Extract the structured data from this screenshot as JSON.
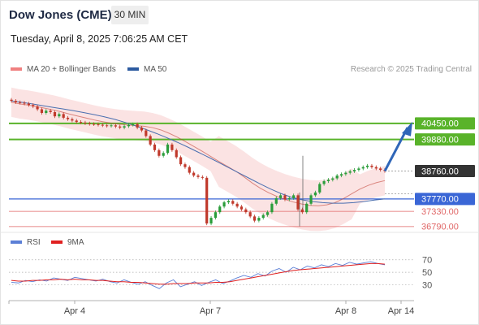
{
  "header": {
    "title": "Dow Jones (CME)",
    "interval": "30 MIN",
    "timestamp": "Tuesday, April 8, 2025 7:06:25 AM CET"
  },
  "legend": {
    "ma20_bb": {
      "label": "MA 20 + Bollinger Bands",
      "color": "#f08080"
    },
    "ma50": {
      "label": "MA 50",
      "color": "#2c5aa0"
    },
    "rsi": {
      "label": "RSI",
      "color": "#5b7fd6"
    },
    "rsi_ma": {
      "label": "9MA",
      "color": "#e02020"
    }
  },
  "credit": "Research © 2025 Trading Central",
  "colors": {
    "up": "#2a9d3a",
    "down": "#c0392b",
    "resistance": "#59b32a",
    "support": "#3a66d6",
    "secondary": "#e06666",
    "current": "#333333",
    "arrow": "#2f66b8",
    "band": "#f7cccc"
  },
  "chart_data": [
    {
      "type": "line",
      "x_tick_labels": [
        "Apr 4",
        "Apr 7",
        "Apr 8",
        "Apr 14"
      ],
      "ylim": [
        36700,
        41800
      ],
      "price_levels": [
        {
          "value": 40450,
          "label": "40450.00",
          "role": "resistance"
        },
        {
          "value": 39880,
          "label": "39880.00",
          "role": "resistance"
        },
        {
          "value": 38760,
          "label": "38760.00",
          "role": "current"
        },
        {
          "value": 37770,
          "label": "37770.00",
          "role": "support"
        },
        {
          "value": 37330,
          "label": "37330.00",
          "role": "secondary"
        },
        {
          "value": 36790,
          "label": "36790.00",
          "role": "secondary"
        }
      ],
      "series": [
        {
          "name": "price",
          "values": [
            41250,
            41200,
            41180,
            41150,
            41100,
            41050,
            40950,
            40820,
            40900,
            40850,
            40700,
            40780,
            40650,
            40600,
            40550,
            40500,
            40480,
            40450,
            40430,
            40420,
            40400,
            40380,
            40360,
            40380,
            40340,
            40300,
            40350,
            40400,
            40420,
            40300,
            40200,
            40000,
            39700,
            39500,
            39300,
            39400,
            39700,
            39500,
            39250,
            39000,
            38900,
            38700,
            38600,
            38550,
            38520,
            36900,
            37100,
            37300,
            37500,
            37650,
            37700,
            37600,
            37500,
            37400,
            37300,
            37150,
            37000,
            37100,
            37200,
            37300,
            37600,
            37800,
            37900,
            37750,
            37800,
            37900,
            37400,
            37300,
            37600,
            37900,
            38000,
            38300,
            38400,
            38450,
            38500,
            38600,
            38650,
            38700,
            38750,
            38800,
            38850,
            38900,
            38950,
            38900,
            38850,
            38800,
            38760
          ]
        },
        {
          "name": "MA 20",
          "values": [
            41200,
            41140,
            41100,
            41050,
            40990,
            40930,
            40860,
            40780,
            40710,
            40640,
            40570,
            40510,
            40460,
            40420,
            40390,
            40370,
            40350,
            40300,
            40220,
            40100,
            39960,
            39800,
            39630,
            39460,
            39280,
            39100,
            38930,
            38760,
            38560,
            38340,
            38150,
            37990,
            37860,
            37750,
            37660,
            37590,
            37540,
            37530,
            37560,
            37640,
            37780,
            37950,
            38120,
            38250,
            38350,
            38420
          ]
        },
        {
          "name": "MA 50",
          "values": [
            41250,
            41200,
            41140,
            41080,
            41020,
            40960,
            40900,
            40830,
            40760,
            40680,
            40590,
            40480,
            40360,
            40230,
            40090,
            39940,
            39780,
            39610,
            39430,
            39250,
            39060,
            38870,
            38680,
            38490,
            38300,
            38120,
            37960,
            37830,
            37740,
            37680,
            37640,
            37620,
            37620,
            37640,
            37680,
            37730,
            37770
          ]
        }
      ]
    },
    {
      "type": "line",
      "x_tick_labels": [
        "Apr 4",
        "Apr 7",
        "Apr 8",
        "Apr 14"
      ],
      "ylim": [
        10,
        80
      ],
      "reference_lines": [
        70,
        50,
        30
      ],
      "series": [
        {
          "name": "RSI",
          "values": [
            34,
            33,
            37,
            35,
            38,
            36,
            41,
            39,
            37,
            42,
            40,
            38,
            36,
            39,
            35,
            33,
            38,
            34,
            31,
            35,
            29,
            24,
            33,
            38,
            27,
            31,
            35,
            29,
            34,
            38,
            32,
            36,
            41,
            45,
            42,
            48,
            44,
            52,
            56,
            50,
            58,
            54,
            60,
            57,
            62,
            59,
            64,
            61,
            66,
            63,
            65,
            67,
            64,
            62
          ]
        },
        {
          "name": "9MA",
          "values": [
            37,
            36,
            36,
            37,
            37,
            38,
            38,
            39,
            38,
            39,
            38,
            38,
            37,
            37,
            36,
            35,
            35,
            34,
            34,
            33,
            32,
            31,
            31,
            32,
            32,
            32,
            33,
            33,
            33,
            34,
            34,
            35,
            37,
            39,
            41,
            43,
            45,
            47,
            49,
            51,
            53,
            54,
            55,
            56,
            57,
            58,
            59,
            60,
            61,
            62,
            63,
            64,
            64,
            63
          ]
        }
      ]
    }
  ]
}
